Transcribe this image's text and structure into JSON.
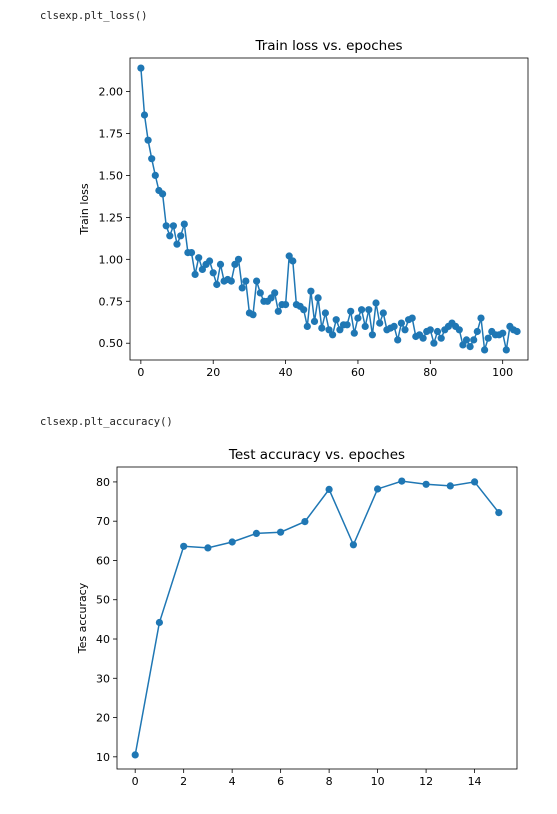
{
  "cells": [
    {
      "code": "clsexp.plt_loss()"
    },
    {
      "code": "clsexp.plt_accuracy()"
    }
  ],
  "colors": {
    "series": "#1f77b4"
  },
  "chart_data": [
    {
      "type": "line",
      "title": "Train loss vs. epoches",
      "xlabel": "",
      "ylabel": "Train loss",
      "xlim": [
        -3,
        107
      ],
      "ylim": [
        0.4,
        2.2
      ],
      "xticks": [
        0,
        20,
        40,
        60,
        80,
        100
      ],
      "yticks": [
        0.5,
        0.75,
        1.0,
        1.25,
        1.5,
        1.75,
        2.0
      ],
      "ytick_labels": [
        "0.50",
        "0.75",
        "1.00",
        "1.25",
        "1.50",
        "1.75",
        "2.00"
      ],
      "grid": false,
      "marker": "circle",
      "series": [
        {
          "x": [
            0,
            1,
            2,
            3,
            4,
            5,
            6,
            7,
            8,
            9,
            10,
            11,
            12,
            13,
            14,
            15,
            16,
            17,
            18,
            19,
            20,
            21,
            22,
            23,
            24,
            25,
            26,
            27,
            28,
            29,
            30,
            31,
            32,
            33,
            34,
            35,
            36,
            37,
            38,
            39,
            40,
            41,
            42,
            43,
            44,
            45,
            46,
            47,
            48,
            49,
            50,
            51,
            52,
            53,
            54,
            55,
            56,
            57,
            58,
            59,
            60,
            61,
            62,
            63,
            64,
            65,
            66,
            67,
            68,
            69,
            70,
            71,
            72,
            73,
            74,
            75,
            76,
            77,
            78,
            79,
            80,
            81,
            82,
            83,
            84,
            85,
            86,
            87,
            88,
            89,
            90,
            91,
            92,
            93,
            94,
            95,
            96,
            97,
            98,
            99,
            100,
            101,
            102,
            103,
            104
          ],
          "y": [
            2.14,
            1.86,
            1.71,
            1.6,
            1.5,
            1.41,
            1.39,
            1.2,
            1.14,
            1.2,
            1.09,
            1.14,
            1.21,
            1.04,
            1.04,
            0.91,
            1.01,
            0.94,
            0.97,
            0.99,
            0.92,
            0.85,
            0.97,
            0.87,
            0.88,
            0.87,
            0.97,
            1.0,
            0.83,
            0.87,
            0.68,
            0.67,
            0.87,
            0.8,
            0.75,
            0.75,
            0.77,
            0.8,
            0.69,
            0.73,
            0.73,
            1.02,
            0.99,
            0.73,
            0.72,
            0.7,
            0.6,
            0.81,
            0.63,
            0.77,
            0.59,
            0.68,
            0.58,
            0.55,
            0.64,
            0.58,
            0.61,
            0.61,
            0.69,
            0.56,
            0.65,
            0.7,
            0.6,
            0.7,
            0.55,
            0.74,
            0.62,
            0.68,
            0.58,
            0.59,
            0.6,
            0.52,
            0.62,
            0.58,
            0.64,
            0.65,
            0.54,
            0.55,
            0.53,
            0.57,
            0.58,
            0.5,
            0.57,
            0.53,
            0.58,
            0.6,
            0.62,
            0.6,
            0.58,
            0.49,
            0.52,
            0.48,
            0.52,
            0.57,
            0.65,
            0.46,
            0.53,
            0.57,
            0.55,
            0.55,
            0.56,
            0.46,
            0.6,
            0.58,
            0.57
          ]
        }
      ]
    },
    {
      "type": "line",
      "title": "Test accuracy vs. epoches",
      "xlabel": "",
      "ylabel": "Tes accuracy",
      "xlim": [
        -0.75,
        15.75
      ],
      "ylim": [
        6.9,
        83.8
      ],
      "xticks": [
        0,
        2,
        4,
        6,
        8,
        10,
        12,
        14
      ],
      "yticks": [
        10,
        20,
        30,
        40,
        50,
        60,
        70,
        80
      ],
      "ytick_labels": [
        "10",
        "20",
        "30",
        "40",
        "50",
        "60",
        "70",
        "80"
      ],
      "grid": false,
      "marker": "circle",
      "series": [
        {
          "x": [
            0,
            1,
            2,
            3,
            4,
            5,
            6,
            7,
            8,
            9,
            10,
            11,
            12,
            13,
            14,
            15
          ],
          "y": [
            10.5,
            44.2,
            63.6,
            63.2,
            64.7,
            66.9,
            67.2,
            69.9,
            78.1,
            64.0,
            78.2,
            80.2,
            79.4,
            79.0,
            80.0,
            72.2
          ]
        }
      ]
    }
  ]
}
